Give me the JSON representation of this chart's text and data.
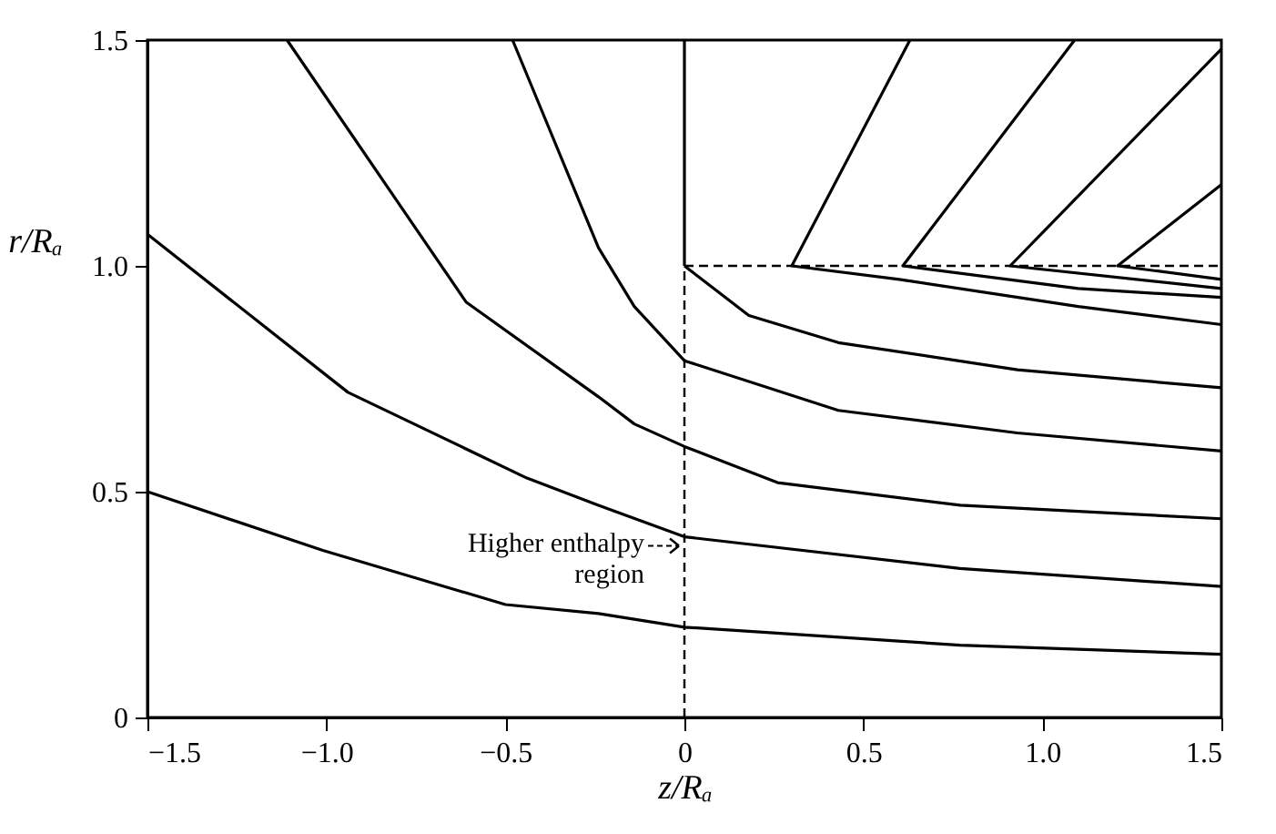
{
  "chart_data": {
    "type": "line",
    "xlabel": "z/Rₐ",
    "ylabel": "r/Rₐ",
    "xlim": [
      -1.5,
      1.5
    ],
    "ylim": [
      0,
      1.5
    ],
    "xticks": [
      {
        "value": -1.5,
        "label": "−1.5"
      },
      {
        "value": -1,
        "label": "−1.0"
      },
      {
        "value": -0.5,
        "label": "−0.5"
      },
      0,
      {
        "value": 0.5,
        "label": "0.5"
      },
      {
        "value": 1,
        "label": "1.0"
      },
      {
        "value": 1.5,
        "label": "1.5"
      }
    ],
    "yticks": [
      0,
      {
        "value": 0.5,
        "label": "0.5"
      },
      {
        "value": 1,
        "label": "1.0"
      },
      {
        "value": 1.5,
        "label": "1.5"
      }
    ],
    "grid": false,
    "marker": "none",
    "series": [
      {
        "color": "#000000",
        "line_style": "solid",
        "x": [
          -1.5,
          -1.01,
          -0.5,
          -0.24,
          0,
          0.77,
          1.5
        ],
        "values": [
          0.5,
          0.37,
          0.25,
          0.23,
          0.2,
          0.16,
          0.14
        ]
      },
      {
        "color": "#000000",
        "line_style": "solid",
        "x": [
          -1.5,
          -0.94,
          -0.44,
          -0.24,
          0,
          0.77,
          1.5
        ],
        "values": [
          1.07,
          0.72,
          0.53,
          0.47,
          0.4,
          0.33,
          0.29
        ]
      },
      {
        "color": "#000000",
        "line_style": "solid",
        "x": [
          -1.11,
          -0.61,
          -0.24,
          -0.14,
          0,
          0.26,
          0.77,
          1.5
        ],
        "values": [
          1.5,
          0.92,
          0.71,
          0.65,
          0.6,
          0.52,
          0.47,
          0.44
        ]
      },
      {
        "color": "#000000",
        "line_style": "solid",
        "x": [
          -0.48,
          -0.24,
          -0.14,
          0,
          0.43,
          0.93,
          1.5
        ],
        "values": [
          1.5,
          1.04,
          0.91,
          0.79,
          0.68,
          0.63,
          0.59
        ]
      },
      {
        "color": "#000000",
        "line_style": "solid",
        "x": [
          0,
          0.18,
          0.43,
          0.93,
          1.5
        ],
        "values": [
          1.0,
          0.89,
          0.83,
          0.77,
          0.73
        ]
      },
      {
        "color": "#000000",
        "line_style": "solid",
        "x": [
          0.63,
          0.3,
          0.6,
          1.1,
          1.5
        ],
        "values": [
          1.5,
          1.0,
          0.97,
          0.91,
          0.87
        ]
      },
      {
        "color": "#000000",
        "line_style": "solid",
        "x": [
          1.09,
          0.61,
          1.1,
          1.5
        ],
        "values": [
          1.5,
          1.0,
          0.95,
          0.93
        ]
      },
      {
        "color": "#000000",
        "line_style": "solid",
        "x": [
          1.5,
          0.91,
          1.5
        ],
        "values": [
          1.48,
          1.0,
          0.95
        ]
      },
      {
        "color": "#000000",
        "line_style": "solid",
        "x": [
          1.5,
          1.21,
          1.5
        ],
        "values": [
          1.18,
          1.0,
          0.97
        ]
      },
      {
        "color": "#000000",
        "line_style": "solid",
        "x": [
          0,
          0
        ],
        "values": [
          1.0,
          1.5
        ]
      },
      {
        "color": "#000000",
        "line_style": "dashed",
        "x": [
          0,
          0
        ],
        "values": [
          0,
          1.0
        ]
      },
      {
        "color": "#000000",
        "line_style": "dashed",
        "x": [
          0,
          1.5
        ],
        "values": [
          1.0,
          1.0
        ]
      }
    ],
    "annotations": [
      {
        "text": "Higher enthalpy\nregion",
        "x": 0,
        "y": 0.38
      }
    ]
  }
}
